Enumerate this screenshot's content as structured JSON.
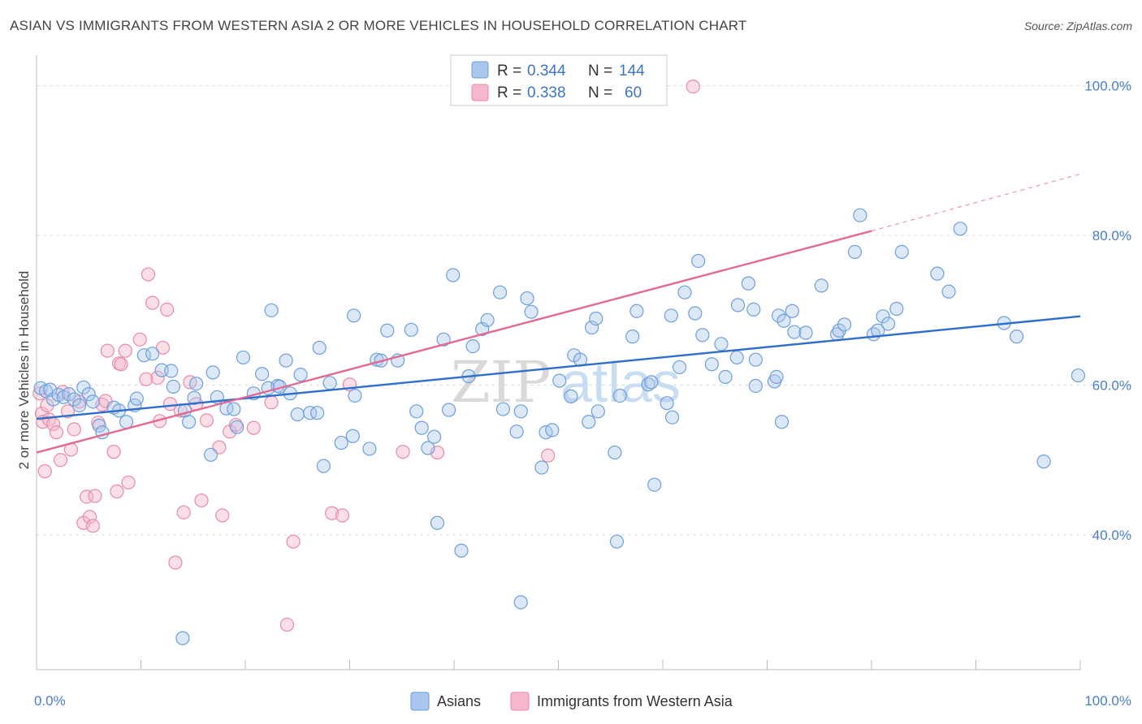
{
  "title": "ASIAN VS IMMIGRANTS FROM WESTERN ASIA 2 OR MORE VEHICLES IN HOUSEHOLD CORRELATION CHART",
  "source": "Source: ZipAtlas.com",
  "watermark": {
    "zip": "ZIP",
    "atlas": "atlas"
  },
  "colors": {
    "asian_fill": "#a9c6ec",
    "asian_stroke": "#6d9fdc",
    "asian_line": "#2f6fcc",
    "wa_fill": "#f5b8ca",
    "wa_stroke": "#e98aa8",
    "wa_line": "#e26a92",
    "tick_text": "#4a7ec9",
    "grid": "#dddddd"
  },
  "legend": {
    "row1": {
      "r_label": "R =",
      "r_value": "0.344",
      "n_label": "N =",
      "n_value": "144"
    },
    "row2": {
      "r_label": "R =",
      "r_value": "0.338",
      "n_label": "N =",
      "n_value": "60"
    }
  },
  "bottom_legend": {
    "asians": "Asians",
    "wa": "Immigrants from Western Asia"
  },
  "chart_data": {
    "type": "scatter",
    "title": "ASIAN VS IMMIGRANTS FROM WESTERN ASIA 2 OR MORE VEHICLES IN HOUSEHOLD CORRELATION CHART",
    "xlabel": "",
    "ylabel": "2 or more Vehicles in Household",
    "xlim": [
      0,
      100
    ],
    "ylim": [
      22,
      103
    ],
    "x_tick_labels": [
      "0.0%",
      "100.0%"
    ],
    "y_ticks": [
      40,
      60,
      80,
      100
    ],
    "y_tick_labels": [
      "40.0%",
      "60.0%",
      "80.0%",
      "100.0%"
    ],
    "grid": true,
    "legend_position": "top-center",
    "series": [
      {
        "name": "Asians",
        "r": 0.344,
        "n": 144,
        "trend": {
          "x": [
            0,
            100
          ],
          "y": [
            55.5,
            69.2
          ]
        },
        "points": [
          [
            0.4,
            59.6
          ],
          [
            0.9,
            59.2
          ],
          [
            1.3,
            59.4
          ],
          [
            1.6,
            58.1
          ],
          [
            2.1,
            58.7
          ],
          [
            2.6,
            58.4
          ],
          [
            3.1,
            58.8
          ],
          [
            3.6,
            58.1
          ],
          [
            4.1,
            57.3
          ],
          [
            4.5,
            59.7
          ],
          [
            5.0,
            58.8
          ],
          [
            5.4,
            57.8
          ],
          [
            6.0,
            54.6
          ],
          [
            6.3,
            53.7
          ],
          [
            7.4,
            57.0
          ],
          [
            7.9,
            56.6
          ],
          [
            8.6,
            55.1
          ],
          [
            9.4,
            57.3
          ],
          [
            9.6,
            58.2
          ],
          [
            10.3,
            64.0
          ],
          [
            11.1,
            64.2
          ],
          [
            12.0,
            62.0
          ],
          [
            12.9,
            61.9
          ],
          [
            13.1,
            59.8
          ],
          [
            14.2,
            56.6
          ],
          [
            14.6,
            55.1
          ],
          [
            15.1,
            58.3
          ],
          [
            15.3,
            60.2
          ],
          [
            16.9,
            61.7
          ],
          [
            16.7,
            50.7
          ],
          [
            17.3,
            58.4
          ],
          [
            18.2,
            56.9
          ],
          [
            18.9,
            56.8
          ],
          [
            19.2,
            54.4
          ],
          [
            19.8,
            63.7
          ],
          [
            20.8,
            58.9
          ],
          [
            21.6,
            61.5
          ],
          [
            22.2,
            59.6
          ],
          [
            22.5,
            70.0
          ],
          [
            23.1,
            59.9
          ],
          [
            23.3,
            59.8
          ],
          [
            24.3,
            58.9
          ],
          [
            23.9,
            63.3
          ],
          [
            25.0,
            56.1
          ],
          [
            25.3,
            61.4
          ],
          [
            26.2,
            56.3
          ],
          [
            26.9,
            56.3
          ],
          [
            27.1,
            65.0
          ],
          [
            27.5,
            49.2
          ],
          [
            28.1,
            60.3
          ],
          [
            29.2,
            52.3
          ],
          [
            30.3,
            53.2
          ],
          [
            30.4,
            69.3
          ],
          [
            30.5,
            58.6
          ],
          [
            31.9,
            51.5
          ],
          [
            32.6,
            63.4
          ],
          [
            33.0,
            63.3
          ],
          [
            33.6,
            67.3
          ],
          [
            34.6,
            63.3
          ],
          [
            35.9,
            67.4
          ],
          [
            36.4,
            56.5
          ],
          [
            36.9,
            54.3
          ],
          [
            37.5,
            51.6
          ],
          [
            38.1,
            53.1
          ],
          [
            38.4,
            41.6
          ],
          [
            39.0,
            66.1
          ],
          [
            39.5,
            56.7
          ],
          [
            39.9,
            74.7
          ],
          [
            40.7,
            37.9
          ],
          [
            41.4,
            61.2
          ],
          [
            41.8,
            65.2
          ],
          [
            42.7,
            67.5
          ],
          [
            43.2,
            68.7
          ],
          [
            44.4,
            72.4
          ],
          [
            44.7,
            56.8
          ],
          [
            46.0,
            53.8
          ],
          [
            46.4,
            31.0
          ],
          [
            46.4,
            56.5
          ],
          [
            47.0,
            71.6
          ],
          [
            47.4,
            69.8
          ],
          [
            48.4,
            49.0
          ],
          [
            48.8,
            53.7
          ],
          [
            49.4,
            54.0
          ],
          [
            50.1,
            60.6
          ],
          [
            51.2,
            58.5
          ],
          [
            51.5,
            64.0
          ],
          [
            52.1,
            63.4
          ],
          [
            52.9,
            55.1
          ],
          [
            53.2,
            67.7
          ],
          [
            53.6,
            68.9
          ],
          [
            53.8,
            56.5
          ],
          [
            55.4,
            51.0
          ],
          [
            55.6,
            39.1
          ],
          [
            55.9,
            58.6
          ],
          [
            57.1,
            66.5
          ],
          [
            57.5,
            69.9
          ],
          [
            58.6,
            60.1
          ],
          [
            58.9,
            60.4
          ],
          [
            59.2,
            46.7
          ],
          [
            60.4,
            57.6
          ],
          [
            60.8,
            69.3
          ],
          [
            60.9,
            55.7
          ],
          [
            61.6,
            62.4
          ],
          [
            62.1,
            72.4
          ],
          [
            63.1,
            69.6
          ],
          [
            63.4,
            76.6
          ],
          [
            63.8,
            66.7
          ],
          [
            64.7,
            62.8
          ],
          [
            65.6,
            65.5
          ],
          [
            66.0,
            61.1
          ],
          [
            67.1,
            63.7
          ],
          [
            67.2,
            70.7
          ],
          [
            68.2,
            73.6
          ],
          [
            68.7,
            70.1
          ],
          [
            68.9,
            63.4
          ],
          [
            68.9,
            59.9
          ],
          [
            70.7,
            60.5
          ],
          [
            70.9,
            61.1
          ],
          [
            71.1,
            69.3
          ],
          [
            71.4,
            55.1
          ],
          [
            71.6,
            68.6
          ],
          [
            72.4,
            69.9
          ],
          [
            72.6,
            67.1
          ],
          [
            73.7,
            67.0
          ],
          [
            75.2,
            73.3
          ],
          [
            76.7,
            66.8
          ],
          [
            76.9,
            67.3
          ],
          [
            77.4,
            68.1
          ],
          [
            78.4,
            77.8
          ],
          [
            78.9,
            82.7
          ],
          [
            80.2,
            66.8
          ],
          [
            80.6,
            67.3
          ],
          [
            81.1,
            69.2
          ],
          [
            81.6,
            68.2
          ],
          [
            82.4,
            70.2
          ],
          [
            82.9,
            77.8
          ],
          [
            86.3,
            74.9
          ],
          [
            87.4,
            72.5
          ],
          [
            88.5,
            80.9
          ],
          [
            92.7,
            68.3
          ],
          [
            93.9,
            66.5
          ],
          [
            96.5,
            49.8
          ],
          [
            99.8,
            61.3
          ],
          [
            14.0,
            26.2
          ]
        ]
      },
      {
        "name": "Immigrants from Western Asia",
        "r": 0.338,
        "n": 60,
        "trend": {
          "x": [
            0,
            80
          ],
          "y": [
            51.0,
            80.6
          ]
        },
        "trend_dashed": {
          "x": [
            80,
            100
          ],
          "y": [
            80.6,
            88.2
          ]
        },
        "points": [
          [
            0.3,
            58.9
          ],
          [
            0.5,
            56.2
          ],
          [
            0.6,
            55.1
          ],
          [
            0.8,
            48.5
          ],
          [
            1.0,
            57.3
          ],
          [
            1.2,
            55.4
          ],
          [
            1.6,
            54.8
          ],
          [
            1.9,
            53.7
          ],
          [
            2.3,
            50.0
          ],
          [
            2.5,
            59.1
          ],
          [
            3.0,
            56.5
          ],
          [
            3.3,
            51.4
          ],
          [
            3.6,
            54.1
          ],
          [
            4.1,
            57.8
          ],
          [
            4.5,
            41.6
          ],
          [
            4.8,
            45.1
          ],
          [
            5.1,
            42.4
          ],
          [
            5.4,
            41.2
          ],
          [
            5.6,
            45.2
          ],
          [
            5.9,
            55.0
          ],
          [
            6.3,
            57.4
          ],
          [
            6.6,
            57.9
          ],
          [
            6.8,
            64.6
          ],
          [
            7.4,
            51.1
          ],
          [
            7.7,
            45.8
          ],
          [
            7.9,
            62.9
          ],
          [
            8.1,
            62.8
          ],
          [
            8.5,
            64.6
          ],
          [
            8.8,
            47.0
          ],
          [
            9.9,
            66.1
          ],
          [
            10.5,
            60.8
          ],
          [
            10.7,
            74.8
          ],
          [
            11.1,
            71.0
          ],
          [
            11.6,
            61.0
          ],
          [
            11.8,
            55.2
          ],
          [
            12.1,
            65.0
          ],
          [
            12.5,
            70.1
          ],
          [
            12.8,
            57.5
          ],
          [
            13.3,
            36.3
          ],
          [
            13.8,
            56.6
          ],
          [
            14.1,
            43.0
          ],
          [
            14.7,
            60.4
          ],
          [
            15.3,
            57.5
          ],
          [
            15.8,
            44.6
          ],
          [
            16.3,
            55.3
          ],
          [
            17.5,
            51.7
          ],
          [
            17.8,
            42.6
          ],
          [
            18.5,
            53.8
          ],
          [
            19.1,
            54.7
          ],
          [
            20.8,
            54.3
          ],
          [
            22.5,
            57.7
          ],
          [
            24.0,
            28.0
          ],
          [
            24.6,
            39.1
          ],
          [
            28.3,
            42.9
          ],
          [
            29.3,
            42.6
          ],
          [
            30.0,
            60.1
          ],
          [
            35.1,
            51.1
          ],
          [
            38.4,
            51.0
          ],
          [
            49.0,
            50.6
          ],
          [
            62.9,
            99.9
          ]
        ]
      }
    ]
  }
}
